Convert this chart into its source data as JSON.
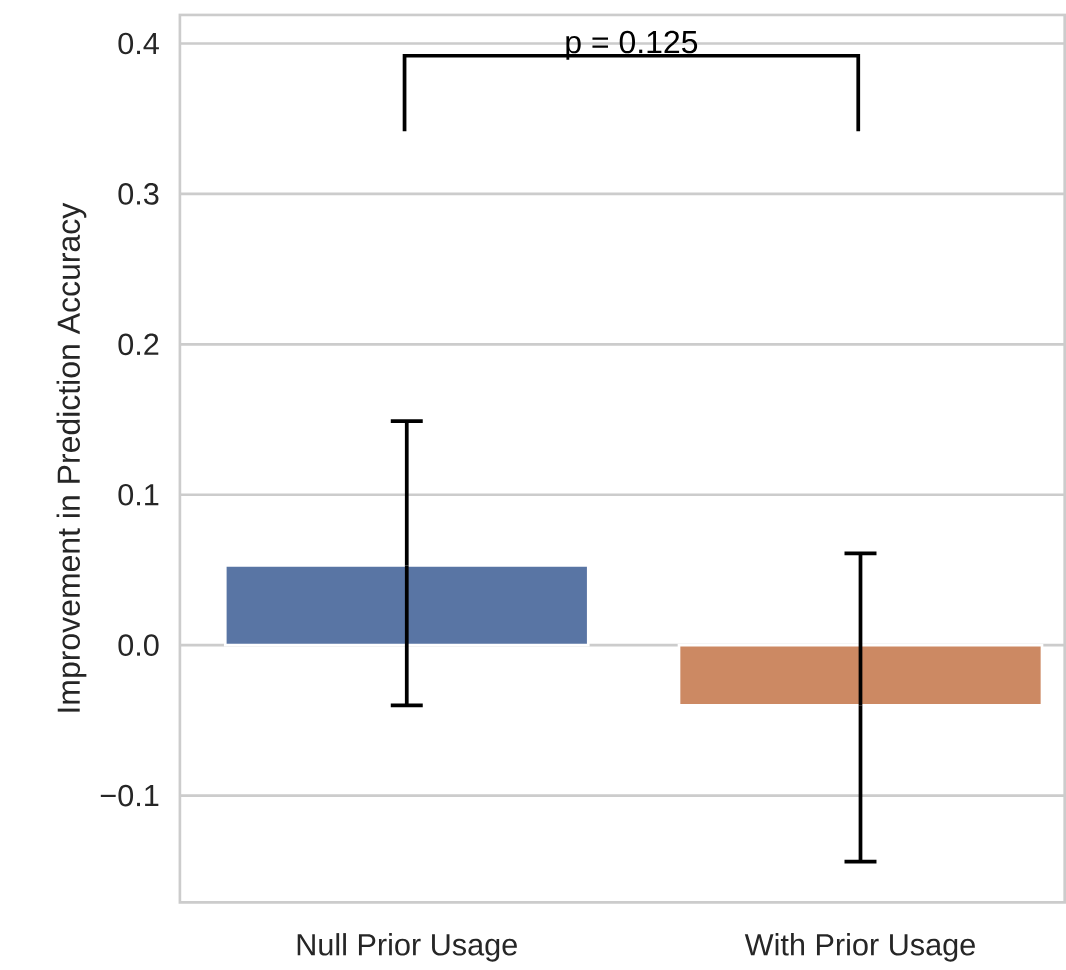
{
  "chart_data": {
    "type": "bar",
    "ylabel": "Improvement in Prediction Accuracy",
    "categories": [
      "Null Prior Usage",
      "With Prior Usage"
    ],
    "values": [
      0.053,
      -0.04
    ],
    "colors": [
      "#5975a4",
      "#cc8963"
    ],
    "errors": [
      [
        -0.04,
        0.149
      ],
      [
        -0.144,
        0.061
      ]
    ],
    "ylim": [
      -0.171,
      0.419
    ],
    "yticks": [
      {
        "value": -0.1,
        "label": "−0.1"
      },
      {
        "value": 0,
        "label": "0.0"
      },
      0.1,
      0.2,
      0.3,
      0.4
    ],
    "grid": "y",
    "annotations": [
      "p = 0.125"
    ]
  }
}
